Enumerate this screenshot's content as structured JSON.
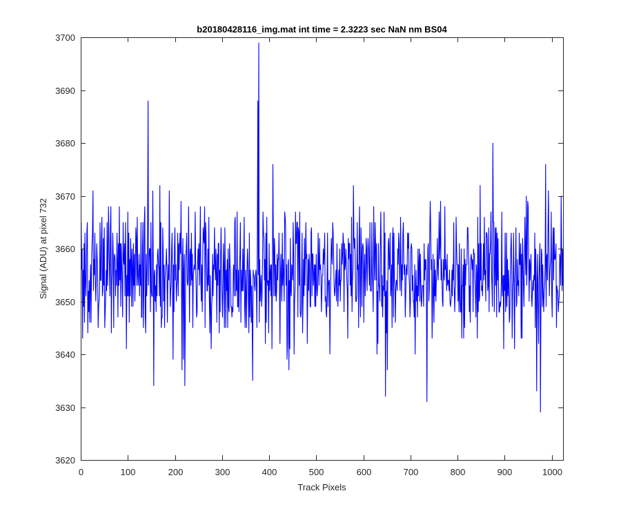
{
  "chart_data": {
    "type": "line",
    "title": "b20180428116_img.mat int time = 2.3223 sec  NaN nm BS04",
    "xlabel": "Track Pixels",
    "ylabel": "Signal (ADU) at pixel 732",
    "xlim": [
      0,
      1024
    ],
    "ylim": [
      3620,
      3700
    ],
    "xticks": [
      0,
      100,
      200,
      300,
      400,
      500,
      600,
      700,
      800,
      900,
      1000
    ],
    "yticks": [
      3620,
      3630,
      3640,
      3650,
      3660,
      3670,
      3680,
      3690,
      3700
    ],
    "grid": false,
    "legend": "none",
    "line_color": "#0000ff",
    "series": [
      {
        "x_start": 1,
        "x_step": 1,
        "noise_model": {
          "mean": 3655,
          "std": 6.3,
          "min": 3629,
          "max": 3699
        },
        "notable_points": [
          {
            "x": 143,
            "y": 3688
          },
          {
            "x": 155,
            "y": 3634
          },
          {
            "x": 221,
            "y": 3634
          },
          {
            "x": 365,
            "y": 3635
          },
          {
            "x": 376,
            "y": 3688
          },
          {
            "x": 378,
            "y": 3699
          },
          {
            "x": 647,
            "y": 3632
          },
          {
            "x": 735,
            "y": 3631
          },
          {
            "x": 875,
            "y": 3680
          },
          {
            "x": 968,
            "y": 3633
          },
          {
            "x": 976,
            "y": 3629
          },
          {
            "x": 1020,
            "y": 3670
          }
        ]
      }
    ]
  }
}
